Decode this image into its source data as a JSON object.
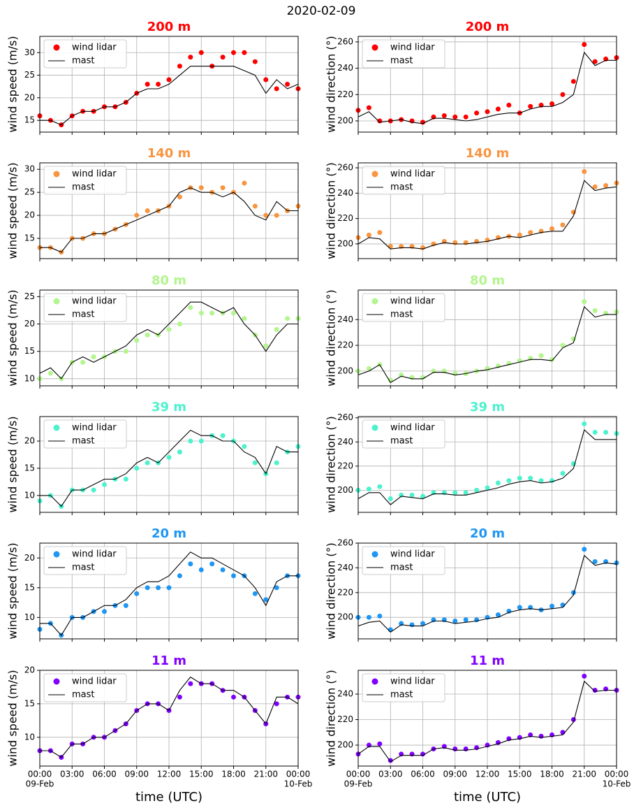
{
  "title": "2020-02-09",
  "xlabel": "time (UTC)",
  "x": [
    0,
    1,
    2,
    3,
    4,
    5,
    6,
    7,
    8,
    9,
    10,
    11,
    12,
    13,
    14,
    15,
    16,
    17,
    18,
    19,
    20,
    21,
    22,
    23,
    24
  ],
  "xlim": [
    0,
    24
  ],
  "xticks": [
    {
      "value": 0,
      "label": "00:00",
      "date": "09-Feb"
    },
    {
      "value": 3,
      "label": "03:00"
    },
    {
      "value": 6,
      "label": "06:00"
    },
    {
      "value": 9,
      "label": "09:00"
    },
    {
      "value": 12,
      "label": "12:00"
    },
    {
      "value": 15,
      "label": "15:00"
    },
    {
      "value": 18,
      "label": "18:00"
    },
    {
      "value": 21,
      "label": "21:00"
    },
    {
      "value": 24,
      "label": "00:00",
      "date": "10-Feb"
    }
  ],
  "chart_data": [
    {
      "type": "line",
      "title": "200 m",
      "ylabel": "wind speed (m/s)",
      "ylim": [
        12.4,
        33.6
      ],
      "yticks": [
        15,
        20,
        25,
        30
      ],
      "grid": true,
      "legend": "upper left",
      "series": [
        {
          "name": "wind lidar",
          "style": "scatter",
          "color": "#ff0000",
          "values": [
            16,
            15,
            14,
            16,
            17,
            17,
            18,
            18,
            19,
            21,
            23,
            23,
            24,
            27,
            29,
            30,
            27,
            29,
            30,
            30,
            28,
            24,
            22,
            23,
            22
          ]
        },
        {
          "name": "mast",
          "style": "line",
          "color": "#000000",
          "values": [
            15,
            15,
            14,
            16,
            17,
            17,
            18,
            18,
            19,
            21,
            22,
            22,
            23,
            25,
            27,
            27,
            27,
            27,
            27,
            26,
            25,
            21,
            24,
            22,
            23
          ]
        }
      ]
    },
    {
      "type": "line",
      "title": "200 m",
      "ylabel": "wind direction (°)",
      "ylim": [
        191.5,
        264.2
      ],
      "yticks": [
        200,
        220,
        240,
        260
      ],
      "grid": true,
      "legend": "upper left",
      "series": [
        {
          "name": "wind lidar",
          "style": "scatter",
          "color": "#ff0000",
          "values": [
            208,
            210,
            200,
            200,
            201,
            200,
            199,
            203,
            204,
            203,
            203,
            206,
            207,
            209,
            212,
            206,
            211,
            212,
            213,
            220,
            230,
            258,
            245,
            247,
            248
          ]
        },
        {
          "name": "mast",
          "style": "line",
          "color": "#000000",
          "values": [
            203,
            207,
            199,
            200,
            201,
            199,
            198,
            202,
            202,
            201,
            200,
            201,
            203,
            205,
            206,
            206,
            209,
            211,
            211,
            214,
            220,
            252,
            242,
            246,
            246
          ]
        }
      ]
    },
    {
      "type": "line",
      "title": "140 m",
      "ylabel": "wind speed (m/s)",
      "ylim": [
        10.6,
        31.4
      ],
      "yticks": [
        15,
        20,
        25,
        30
      ],
      "grid": true,
      "legend": "upper left",
      "series": [
        {
          "name": "wind lidar",
          "style": "scatter",
          "color": "#f89540",
          "values": [
            13,
            13,
            12,
            15,
            15,
            16,
            16,
            17,
            18,
            20,
            21,
            21,
            22,
            24,
            26,
            26,
            25,
            26,
            25,
            27,
            22,
            20,
            20,
            21,
            22
          ]
        },
        {
          "name": "mast",
          "style": "line",
          "color": "#000000",
          "values": [
            13,
            13,
            12,
            15,
            15,
            16,
            16,
            17,
            18,
            19,
            20,
            21,
            22,
            25,
            26,
            25,
            25,
            24,
            25,
            23,
            20,
            19,
            23,
            21,
            21
          ]
        }
      ]
    },
    {
      "type": "line",
      "title": "140 m",
      "ylabel": "wind direction (°)",
      "ylim": [
        188.4,
        263.9
      ],
      "yticks": [
        200,
        220,
        240,
        260
      ],
      "grid": true,
      "legend": "upper left",
      "series": [
        {
          "name": "wind lidar",
          "style": "scatter",
          "color": "#f89540",
          "values": [
            205,
            207,
            209,
            198,
            198,
            198,
            197,
            200,
            202,
            201,
            201,
            202,
            203,
            205,
            206,
            207,
            209,
            210,
            212,
            215,
            225,
            257,
            245,
            246,
            248
          ]
        },
        {
          "name": "mast",
          "style": "line",
          "color": "#000000",
          "values": [
            200,
            205,
            204,
            196,
            197,
            197,
            196,
            199,
            201,
            200,
            200,
            201,
            202,
            204,
            206,
            205,
            207,
            209,
            210,
            210,
            222,
            250,
            242,
            244,
            245
          ]
        }
      ]
    },
    {
      "type": "line",
      "title": "80 m",
      "ylabel": "wind speed (m/s)",
      "ylim": [
        8.7,
        26.2
      ],
      "yticks": [
        10,
        15,
        20,
        25
      ],
      "grid": true,
      "legend": "upper left",
      "series": [
        {
          "name": "wind lidar",
          "style": "scatter",
          "color": "#b3f58e",
          "values": [
            10,
            11,
            10,
            13,
            13,
            14,
            14,
            15,
            15,
            17,
            18,
            18,
            19,
            20,
            23,
            22,
            22,
            22,
            22,
            21,
            18,
            16,
            19,
            21,
            21
          ]
        },
        {
          "name": "mast",
          "style": "line",
          "color": "#000000",
          "values": [
            11,
            12,
            10,
            13,
            14,
            13,
            14,
            15,
            16,
            18,
            19,
            18,
            20,
            22,
            24,
            24,
            23,
            22,
            23,
            20,
            18,
            15,
            18,
            20,
            20
          ]
        }
      ]
    },
    {
      "type": "line",
      "title": "80 m",
      "ylabel": "wind direction (°)",
      "ylim": [
        188.5,
        263
      ],
      "yticks": [
        200,
        220,
        240
      ],
      "grid": true,
      "legend": "upper left",
      "series": [
        {
          "name": "wind lidar",
          "style": "scatter",
          "color": "#b3f58e",
          "values": [
            200,
            202,
            205,
            193,
            197,
            195,
            195,
            200,
            200,
            198,
            198,
            200,
            202,
            204,
            206,
            208,
            210,
            212,
            209,
            220,
            225,
            254,
            247,
            245,
            246
          ]
        },
        {
          "name": "mast",
          "style": "line",
          "color": "#000000",
          "values": [
            197,
            200,
            205,
            191,
            196,
            194,
            194,
            199,
            199,
            197,
            198,
            200,
            201,
            203,
            205,
            207,
            209,
            209,
            208,
            218,
            222,
            250,
            242,
            244,
            244
          ]
        }
      ]
    },
    {
      "type": "line",
      "title": "39 m",
      "ylabel": "wind speed (m/s)",
      "ylim": [
        6.9,
        24.5
      ],
      "yticks": [
        10,
        15,
        20
      ],
      "grid": true,
      "legend": "upper left",
      "series": [
        {
          "name": "wind lidar",
          "style": "scatter",
          "color": "#4cf2ce",
          "values": [
            9,
            10,
            8,
            11,
            11,
            11,
            12,
            13,
            13,
            15,
            16,
            16,
            17,
            18,
            20,
            20,
            21,
            21,
            20,
            19,
            16,
            14,
            16,
            18,
            19
          ]
        },
        {
          "name": "mast",
          "style": "line",
          "color": "#000000",
          "values": [
            10,
            10,
            8,
            11,
            11,
            12,
            13,
            13,
            14,
            16,
            17,
            16,
            18,
            20,
            22,
            21,
            21,
            20,
            20,
            18,
            17,
            14,
            19,
            18,
            18
          ]
        }
      ]
    },
    {
      "type": "line",
      "title": "39 m",
      "ylabel": "wind direction (°)",
      "ylim": [
        181.7,
        261
      ],
      "yticks": [
        200,
        220,
        240,
        260
      ],
      "grid": true,
      "legend": "upper left",
      "series": [
        {
          "name": "wind lidar",
          "style": "scatter",
          "color": "#4cf2ce",
          "values": [
            200,
            201,
            203,
            193,
            196,
            196,
            195,
            198,
            198,
            198,
            198,
            200,
            202,
            206,
            208,
            210,
            210,
            208,
            208,
            214,
            222,
            255,
            248,
            248,
            247
          ]
        },
        {
          "name": "mast",
          "style": "line",
          "color": "#000000",
          "values": [
            193,
            198,
            198,
            188,
            195,
            194,
            193,
            197,
            197,
            196,
            196,
            198,
            200,
            202,
            205,
            207,
            208,
            206,
            207,
            210,
            218,
            250,
            242,
            242,
            242
          ]
        }
      ]
    },
    {
      "type": "line",
      "title": "20 m",
      "ylabel": "wind speed (m/s)",
      "ylim": [
        6.4,
        22.5
      ],
      "yticks": [
        10,
        15,
        20
      ],
      "grid": true,
      "legend": "upper left",
      "series": [
        {
          "name": "wind lidar",
          "style": "scatter",
          "color": "#1e96f3",
          "values": [
            8,
            9,
            7,
            10,
            10,
            11,
            11,
            12,
            12,
            14,
            15,
            15,
            15,
            17,
            19,
            18,
            19,
            18,
            17,
            17,
            14,
            13,
            15,
            17,
            17
          ]
        },
        {
          "name": "mast",
          "style": "line",
          "color": "#000000",
          "values": [
            9,
            9,
            7,
            10,
            10,
            11,
            12,
            12,
            13,
            15,
            16,
            16,
            17,
            19,
            21,
            20,
            20,
            19,
            18,
            17,
            15,
            12,
            16,
            17,
            17
          ]
        }
      ]
    },
    {
      "type": "line",
      "title": "20 m",
      "ylabel": "wind direction (°)",
      "ylim": [
        182.6,
        260
      ],
      "yticks": [
        200,
        220,
        240,
        260
      ],
      "grid": true,
      "legend": "upper left",
      "series": [
        {
          "name": "wind lidar",
          "style": "scatter",
          "color": "#1e96f3",
          "values": [
            200,
            200,
            201,
            190,
            195,
            194,
            195,
            198,
            198,
            197,
            198,
            198,
            200,
            202,
            205,
            208,
            208,
            206,
            209,
            210,
            220,
            255,
            245,
            245,
            244
          ]
        },
        {
          "name": "mast",
          "style": "line",
          "color": "#000000",
          "values": [
            193,
            196,
            197,
            188,
            194,
            193,
            193,
            197,
            197,
            195,
            196,
            197,
            199,
            200,
            204,
            206,
            207,
            206,
            207,
            208,
            218,
            250,
            242,
            244,
            243
          ]
        }
      ]
    },
    {
      "type": "line",
      "title": "11 m",
      "ylabel": "wind speed (m/s)",
      "ylim": [
        5.7,
        20
      ],
      "yticks": [
        10,
        15,
        20
      ],
      "grid": true,
      "legend": "upper left",
      "series": [
        {
          "name": "wind lidar",
          "style": "scatter",
          "color": "#8000ff",
          "values": [
            8,
            8,
            7,
            9,
            9,
            10,
            10,
            11,
            12,
            14,
            15,
            15,
            14,
            16,
            18,
            18,
            18,
            17,
            16,
            16,
            14,
            12,
            15,
            16,
            16
          ]
        },
        {
          "name": "mast",
          "style": "line",
          "color": "#000000",
          "values": [
            8,
            8,
            7,
            9,
            9,
            10,
            10,
            11,
            12,
            14,
            15,
            15,
            14,
            17,
            19,
            18,
            18,
            17,
            17,
            16,
            14,
            12,
            16,
            16,
            15
          ]
        }
      ]
    },
    {
      "type": "line",
      "title": "11 m",
      "ylabel": "wind direction (°)",
      "ylim": [
        183.6,
        258.6
      ],
      "yticks": [
        200,
        220,
        240
      ],
      "grid": true,
      "legend": "upper left",
      "series": [
        {
          "name": "wind lidar",
          "style": "scatter",
          "color": "#8000ff",
          "values": [
            193,
            200,
            201,
            188,
            193,
            193,
            193,
            197,
            199,
            197,
            197,
            198,
            200,
            202,
            205,
            206,
            208,
            207,
            208,
            210,
            220,
            254,
            243,
            244,
            243
          ]
        },
        {
          "name": "mast",
          "style": "line",
          "color": "#000000",
          "values": [
            193,
            199,
            199,
            187,
            192,
            192,
            192,
            197,
            198,
            196,
            196,
            197,
            199,
            201,
            204,
            205,
            207,
            206,
            207,
            208,
            218,
            250,
            242,
            243,
            243
          ]
        }
      ]
    }
  ]
}
